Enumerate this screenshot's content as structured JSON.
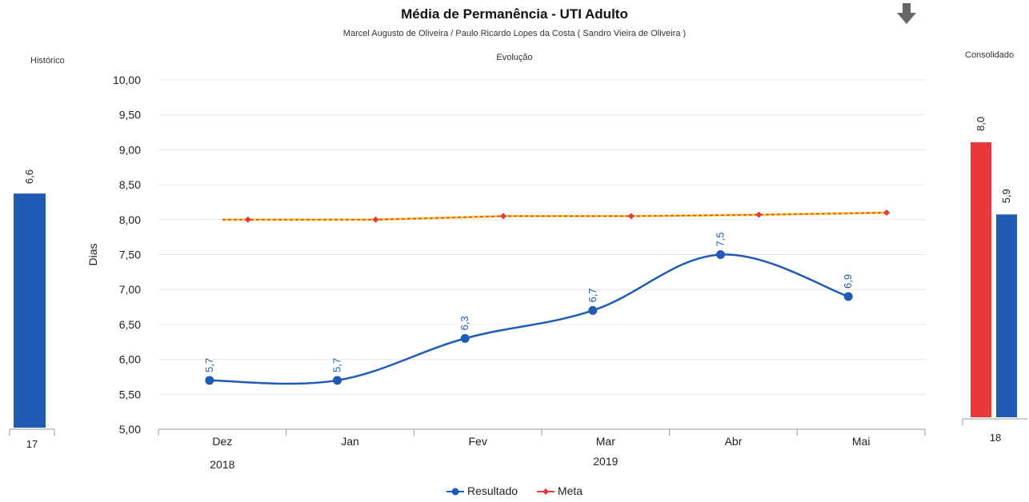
{
  "header": {
    "title": "Média de Permanência - UTI Adulto",
    "subtitle": "Marcel Augusto de Oliveira / Paulo Ricardo Lopes da Costa ( Sandro Vieira de Oliveira )",
    "section": "Evolução"
  },
  "historico": {
    "label": "Histórico",
    "value": 6.6,
    "value_label": "6,6",
    "category": "17",
    "color": "#1f5bb5"
  },
  "consolidado": {
    "label": "Consolidado",
    "category": "18",
    "bars": [
      {
        "value": 8.0,
        "value_label": "8,0",
        "color": "#e8383b"
      },
      {
        "value": 5.9,
        "value_label": "5,9",
        "color": "#1f5bb5"
      }
    ]
  },
  "icons": {
    "download": "down-arrow-icon"
  },
  "chart_data": {
    "type": "line",
    "ylabel": "Dias",
    "ylim": [
      5,
      10
    ],
    "yticks": [
      "5,00",
      "5,50",
      "6,00",
      "6,50",
      "7,00",
      "7,50",
      "8,00",
      "8,50",
      "9,00",
      "9,50",
      "10,00"
    ],
    "categories": [
      "Dez",
      "Jan",
      "Fev",
      "Mar",
      "Abr",
      "Mai"
    ],
    "year_labels": [
      "2018",
      "2019"
    ],
    "series": [
      {
        "name": "Resultado",
        "color": "#1f5bb5",
        "x": [
          0.4,
          1.4,
          2.4,
          3.4,
          4.4,
          5.4
        ],
        "values": [
          5.7,
          5.7,
          6.3,
          6.7,
          7.5,
          6.9
        ],
        "labels": [
          "5,7",
          "5,7",
          "6,3",
          "6,7",
          "7,5",
          "6,9"
        ]
      },
      {
        "name": "Meta",
        "color": "#e8383b",
        "x": [
          0.7,
          1.7,
          2.7,
          3.7,
          4.7,
          5.7
        ],
        "values": [
          8.0,
          8.0,
          8.05,
          8.05,
          8.07,
          8.1
        ]
      }
    ]
  }
}
